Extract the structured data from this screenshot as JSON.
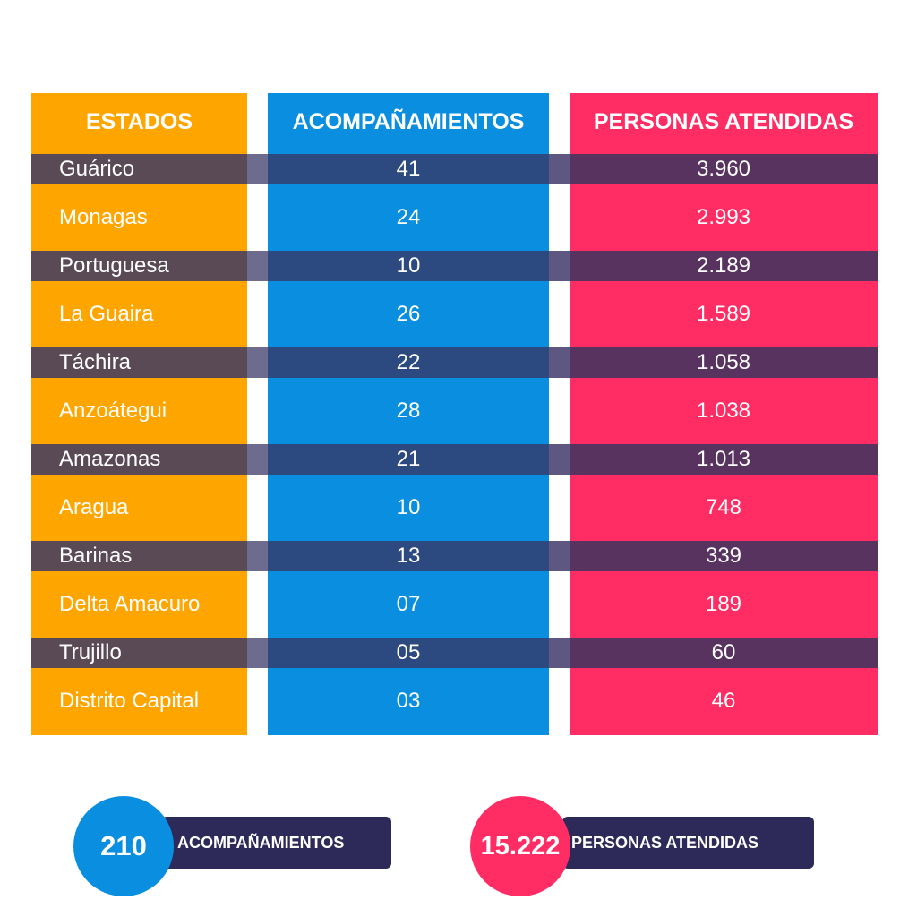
{
  "headers": {
    "estados": "ESTADOS",
    "acompanamientos": "ACOMPAÑAMIENTOS",
    "personas": "PERSONAS ATENDIDAS"
  },
  "colors": {
    "estados": "#FFA500",
    "acompanamientos": "#0A8FE0",
    "personas": "#FF2D63",
    "summary_pill": "#2D2A5A"
  },
  "chart_data": {
    "type": "table",
    "columns": [
      "ESTADOS",
      "ACOMPAÑAMIENTOS",
      "PERSONAS ATENDIDAS"
    ],
    "rows": [
      {
        "estado": "Guárico",
        "acompanamientos": "41",
        "personas": "3.960"
      },
      {
        "estado": "Monagas",
        "acompanamientos": "24",
        "personas": "2.993"
      },
      {
        "estado": "Portuguesa",
        "acompanamientos": "10",
        "personas": "2.189"
      },
      {
        "estado": "La Guaira",
        "acompanamientos": "26",
        "personas": "1.589"
      },
      {
        "estado": "Táchira",
        "acompanamientos": "22",
        "personas": "1.058"
      },
      {
        "estado": "Anzoátegui",
        "acompanamientos": "28",
        "personas": "1.038"
      },
      {
        "estado": "Amazonas",
        "acompanamientos": "21",
        "personas": "1.013"
      },
      {
        "estado": "Aragua",
        "acompanamientos": "10",
        "personas": "748"
      },
      {
        "estado": "Barinas",
        "acompanamientos": "13",
        "personas": "339"
      },
      {
        "estado": "Delta Amacuro",
        "acompanamientos": "07",
        "personas": "189"
      },
      {
        "estado": "Trujillo",
        "acompanamientos": "05",
        "personas": "60"
      },
      {
        "estado": "Distrito Capital",
        "acompanamientos": "03",
        "personas": "46"
      }
    ]
  },
  "summary": {
    "acompanamientos": {
      "value": "210",
      "label": "ACOMPAÑAMIENTOS"
    },
    "personas": {
      "value": "15.222",
      "label": "PERSONAS ATENDIDAS"
    }
  }
}
